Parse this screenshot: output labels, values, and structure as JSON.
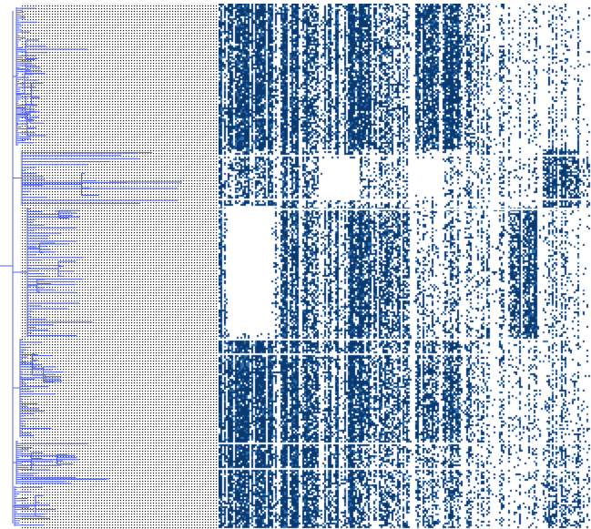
{
  "figure": {
    "kind": "phylogenetic tree with presence/absence matrix",
    "colors": {
      "background": "#ffffff",
      "tree_branch": "#5566ee",
      "leader_dots": "#222222",
      "matrix_present": "#0a3a72",
      "matrix_present_light": "#2e6fb0",
      "matrix_absent": "#ffffff"
    },
    "tree": {
      "text_labels": [],
      "orientation": "left-to-right"
    },
    "matrix": {
      "text_labels": [],
      "column_headers": [],
      "row_labels": []
    }
  }
}
